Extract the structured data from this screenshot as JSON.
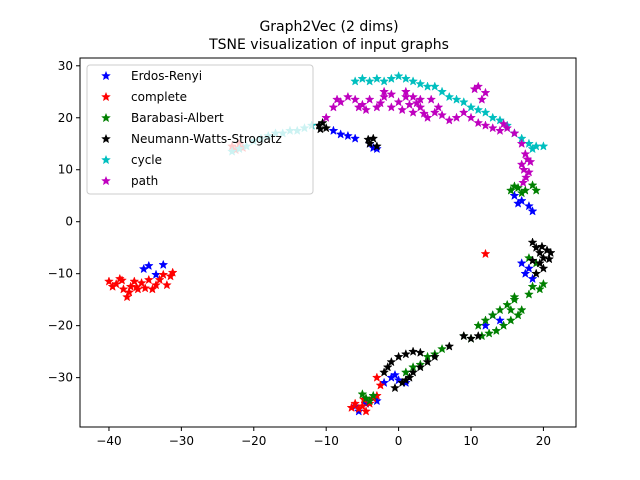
{
  "chart_data": {
    "type": "scatter",
    "title": "Graph2Vec (2 dims)",
    "subtitle": "TSNE visualization of input graphs",
    "xlabel": "",
    "ylabel": "",
    "xlim": [
      -44,
      24.5
    ],
    "ylim": [
      -39.5,
      31.5
    ],
    "xticks": [
      -40,
      -30,
      -20,
      -10,
      0,
      10,
      20
    ],
    "yticks": [
      -30,
      -20,
      -10,
      0,
      10,
      20,
      30
    ],
    "grid": false,
    "legend_position": "top-left",
    "marker": "star",
    "series": [
      {
        "name": "Erdos-Renyi",
        "color": "#0000ff",
        "points": [
          [
            -34.5,
            -8.5
          ],
          [
            -33.5,
            -10.2
          ],
          [
            -32.5,
            -8.3
          ],
          [
            -35.2,
            -9.1
          ],
          [
            -9,
            17.5
          ],
          [
            -8,
            16.8
          ],
          [
            -7,
            16.5
          ],
          [
            -6,
            16
          ],
          [
            -4,
            15
          ],
          [
            -3.5,
            14.2
          ],
          [
            -3,
            14
          ],
          [
            16,
            5
          ],
          [
            17,
            4
          ],
          [
            18,
            3
          ],
          [
            18.5,
            2
          ],
          [
            16.5,
            3.5
          ],
          [
            17,
            -8
          ],
          [
            18,
            -9
          ],
          [
            17.5,
            -10
          ],
          [
            18.5,
            -11
          ],
          [
            13,
            -18
          ],
          [
            14,
            -19
          ],
          [
            12,
            -20
          ],
          [
            -1,
            -30
          ],
          [
            -2,
            -31
          ],
          [
            0,
            -30.5
          ],
          [
            1,
            -31
          ],
          [
            -0.5,
            -29.5
          ],
          [
            -5.5,
            -36.5
          ],
          [
            -4.5,
            -35
          ],
          [
            -6,
            -35.5
          ],
          [
            -3,
            -34.5
          ]
        ]
      },
      {
        "name": "complete",
        "color": "#ff0000",
        "points": [
          [
            -40,
            -11.5
          ],
          [
            -39,
            -12
          ],
          [
            -38.5,
            -11
          ],
          [
            -38,
            -13
          ],
          [
            -37.5,
            -14.5
          ],
          [
            -37,
            -12.5
          ],
          [
            -36.5,
            -11.5
          ],
          [
            -36,
            -13
          ],
          [
            -35.5,
            -11.8
          ],
          [
            -35,
            -12.8
          ],
          [
            -34.5,
            -11.2
          ],
          [
            -34,
            -13
          ],
          [
            -33.5,
            -12.2
          ],
          [
            -33,
            -11.2
          ],
          [
            -32.5,
            -10.2
          ],
          [
            -32,
            -12.2
          ],
          [
            -31.5,
            -10.5
          ],
          [
            -31.2,
            -9.8
          ],
          [
            -38.2,
            -11.3
          ],
          [
            -37.2,
            -13.6
          ],
          [
            -36.2,
            -12.6
          ],
          [
            -39.5,
            -12.5
          ],
          [
            -23,
            14.5
          ],
          [
            -22,
            15
          ],
          [
            -21.5,
            14.2
          ],
          [
            -22.5,
            13.8
          ],
          [
            12,
            -6.2
          ],
          [
            -3,
            -30
          ],
          [
            -2.5,
            -31.5
          ],
          [
            -6,
            -35
          ],
          [
            -5.5,
            -36
          ],
          [
            -5,
            -35.5
          ],
          [
            -4.5,
            -36.5
          ],
          [
            -4,
            -35
          ],
          [
            -3.5,
            -34
          ],
          [
            -3,
            -33.5
          ],
          [
            -6.5,
            -35.8
          ],
          [
            -4.8,
            -34.2
          ]
        ]
      },
      {
        "name": "Barabasi-Albert",
        "color": "#008000",
        "points": [
          [
            15.5,
            6
          ],
          [
            16.5,
            6.5
          ],
          [
            17.5,
            6
          ],
          [
            18.5,
            7
          ],
          [
            19,
            6
          ],
          [
            17,
            5.5
          ],
          [
            16,
            6.8
          ],
          [
            18,
            -7
          ],
          [
            19,
            -8
          ],
          [
            20,
            -12
          ],
          [
            18.5,
            -12.5
          ],
          [
            18,
            -14
          ],
          [
            19.5,
            -13
          ],
          [
            11,
            -20
          ],
          [
            12,
            -19
          ],
          [
            13,
            -18
          ],
          [
            14,
            -17
          ],
          [
            15,
            -16
          ],
          [
            16,
            -15
          ],
          [
            17,
            -17
          ],
          [
            16.5,
            -18
          ],
          [
            15.5,
            -19
          ],
          [
            14.5,
            -20
          ],
          [
            13.5,
            -21
          ],
          [
            12.5,
            -21.5
          ],
          [
            11.5,
            -22
          ],
          [
            10,
            -22.5
          ],
          [
            9,
            -22
          ],
          [
            16,
            -14.5
          ],
          [
            15.5,
            -17
          ],
          [
            1,
            -29
          ],
          [
            2,
            -28
          ],
          [
            3,
            -27.5
          ],
          [
            4,
            -26
          ],
          [
            5,
            -25.5
          ],
          [
            6,
            -24.5
          ],
          [
            -4.5,
            -34
          ],
          [
            -4,
            -34.5
          ],
          [
            -3.5,
            -33.5
          ],
          [
            -5,
            -33.2
          ]
        ]
      },
      {
        "name": "Neumann-Watts-Strogatz",
        "color": "#000000",
        "points": [
          [
            -11,
            18.5
          ],
          [
            -10.5,
            19
          ],
          [
            -10,
            18
          ],
          [
            -10.8,
            17.8
          ],
          [
            -4,
            15
          ],
          [
            -3.5,
            16
          ],
          [
            -3,
            14.5
          ],
          [
            -4.2,
            15.8
          ],
          [
            18.5,
            -4
          ],
          [
            19,
            -5
          ],
          [
            19.5,
            -6
          ],
          [
            20,
            -7
          ],
          [
            20.5,
            -5.5
          ],
          [
            21,
            -6
          ],
          [
            19.5,
            -8
          ],
          [
            20,
            -9
          ],
          [
            19,
            -10
          ],
          [
            18.5,
            -7.5
          ],
          [
            20.8,
            -7.2
          ],
          [
            19.8,
            -4.8
          ],
          [
            9,
            -22
          ],
          [
            10,
            -22.5
          ],
          [
            11,
            -22
          ],
          [
            7,
            -24
          ],
          [
            -2,
            -29
          ],
          [
            -1.5,
            -28
          ],
          [
            -1,
            -27
          ],
          [
            0,
            -26
          ],
          [
            1,
            -25.5
          ],
          [
            2,
            -25
          ],
          [
            3,
            -25.2
          ],
          [
            3,
            -28
          ],
          [
            2,
            -29
          ],
          [
            1.5,
            -30
          ],
          [
            1,
            -30.5
          ],
          [
            0.5,
            -31
          ],
          [
            -0.5,
            -32
          ],
          [
            4,
            -27
          ],
          [
            5,
            -26
          ]
        ]
      },
      {
        "name": "cycle",
        "color": "#00bfbf",
        "points": [
          [
            -23,
            13.5
          ],
          [
            -22,
            14
          ],
          [
            -21,
            14.5
          ],
          [
            -20,
            15.5
          ],
          [
            -19,
            16
          ],
          [
            -18,
            16.5
          ],
          [
            -17,
            17
          ],
          [
            -16,
            17
          ],
          [
            -15,
            17.5
          ],
          [
            -14,
            17.5
          ],
          [
            -13,
            18
          ],
          [
            -12,
            18.5
          ],
          [
            -6,
            27
          ],
          [
            -5,
            27.5
          ],
          [
            -4,
            27
          ],
          [
            -3,
            27.5
          ],
          [
            -2,
            27
          ],
          [
            -1,
            27.5
          ],
          [
            0,
            28
          ],
          [
            1,
            27.5
          ],
          [
            2,
            27
          ],
          [
            3,
            26.5
          ],
          [
            4,
            26
          ],
          [
            5,
            26
          ],
          [
            6,
            25
          ],
          [
            7,
            24
          ],
          [
            8,
            23.5
          ],
          [
            9,
            23
          ],
          [
            10,
            22
          ],
          [
            11,
            21.5
          ],
          [
            12,
            21
          ],
          [
            13,
            20
          ],
          [
            14,
            19.5
          ],
          [
            15,
            18.5
          ],
          [
            16,
            17
          ],
          [
            17,
            16
          ],
          [
            18,
            15
          ],
          [
            19,
            14.5
          ],
          [
            20,
            14.5
          ],
          [
            18.5,
            14
          ]
        ]
      },
      {
        "name": "path",
        "color": "#bf00bf",
        "points": [
          [
            -10,
            20
          ],
          [
            -9,
            22
          ],
          [
            -8,
            23
          ],
          [
            -7,
            24
          ],
          [
            -6,
            23.5
          ],
          [
            -5,
            22.5
          ],
          [
            -4,
            23.5
          ],
          [
            -3,
            22
          ],
          [
            -2,
            24
          ],
          [
            -1,
            22
          ],
          [
            0,
            23
          ],
          [
            1,
            24
          ],
          [
            2,
            21
          ],
          [
            3,
            22
          ],
          [
            4,
            20
          ],
          [
            5,
            21
          ],
          [
            6,
            20.5
          ],
          [
            7,
            19.5
          ],
          [
            8,
            20
          ],
          [
            9,
            21
          ],
          [
            -8.5,
            23.5
          ],
          [
            -5.5,
            22
          ],
          [
            -4.5,
            21.5
          ],
          [
            -2.5,
            22.8
          ],
          [
            0.5,
            21.5
          ],
          [
            1.5,
            22.5
          ],
          [
            2.5,
            22.8
          ],
          [
            3.5,
            20.8
          ],
          [
            -2,
            25
          ],
          [
            -1,
            24.5
          ],
          [
            1,
            25
          ],
          [
            2,
            24
          ],
          [
            3,
            23.5
          ],
          [
            4.5,
            23.5
          ],
          [
            5.5,
            22
          ],
          [
            11,
            26
          ],
          [
            10.5,
            25.5
          ],
          [
            12,
            24.8
          ],
          [
            11.5,
            23.5
          ],
          [
            10,
            20
          ],
          [
            11,
            19
          ],
          [
            12,
            18.5
          ],
          [
            13,
            18
          ],
          [
            14,
            17.5
          ],
          [
            15,
            18
          ],
          [
            16,
            17
          ],
          [
            14.5,
            18.8
          ],
          [
            17,
            15
          ],
          [
            17.5,
            13
          ],
          [
            17.8,
            12
          ],
          [
            17,
            11
          ],
          [
            17.3,
            10
          ],
          [
            18,
            9.5
          ],
          [
            17.6,
            8.5
          ],
          [
            17.2,
            7.5
          ],
          [
            18.2,
            11.5
          ]
        ]
      }
    ]
  }
}
